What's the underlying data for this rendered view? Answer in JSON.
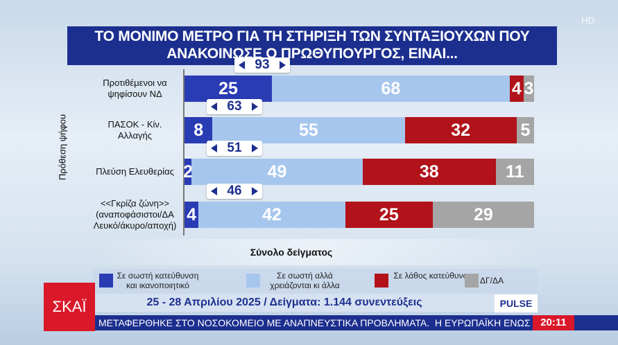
{
  "chart_data": {
    "type": "bar",
    "orientation": "horizontal",
    "stacked": true,
    "title": "ΤΟ ΜΟΝΙΜΟ ΜΕΤΡΟ ΓΙΑ ΤΗ ΣΤΗΡΙΞΗ ΤΩΝ ΣΥΝΤΑΞΙΟΥΧΩΝ ΠΟΥ ΑΝΑΚΟΙΝΩΣΕ Ο ΠΡΩΘΥΠΟΥΡΓΟΣ, ΕΙΝΑΙ...",
    "y_label": "Πρόθεση ψήφου",
    "x_label": "Σύνολο δείγματος",
    "categories": [
      "Προτιθέμενοι να ψηφίσουν ΝΔ",
      "ΠΑΣΟΚ - Κίν. Αλλαγής",
      "Πλεύση Ελευθερίας",
      "<<Γκρίζα ζώνη>> (αναποφάσιστοι/ΔΑ Λευκό/άκυρο/αποχή)"
    ],
    "combined": [
      93,
      63,
      51,
      46
    ],
    "series": [
      {
        "name": "Σε σωστή κατεύθυνση και ικανοποιητικό",
        "color": "#2a3cb4",
        "values": [
          25,
          8,
          2,
          4
        ]
      },
      {
        "name": "Σε σωστή αλλά χρειάζονται κι άλλα",
        "color": "#a7c6ee",
        "values": [
          68,
          55,
          49,
          42
        ]
      },
      {
        "name": "Σε λάθος κατεύθυνση",
        "color": "#b2121a",
        "values": [
          4,
          32,
          38,
          25
        ]
      },
      {
        "name": "ΔΓ/ΔΑ",
        "color": "#a5a5a5",
        "values": [
          3,
          5,
          11,
          29
        ]
      }
    ],
    "xlim": [
      0,
      100
    ]
  },
  "broadcast": {
    "subtitle": "25 - 28 Απριλίου 2025 / Δείγματα: 1.144 συνεντεύξεις",
    "channel": "ΣΚΑΪ",
    "pollster": "PULSE",
    "hd": "HD",
    "ticker": "ΜΕΤΑΦΕΡΘΗΚΕ ΣΤΟ ΝΟΣΟΚΟΜΕΙΟ ΜΕ ΑΝΑΠΝΕΥΣΤΙΚΑ ΠΡΟΒΛΗΜΑΤΑ.  Η ΕΥΡΩΠΑΪΚΗ ΕΝΩΣ",
    "time": "20:11"
  }
}
